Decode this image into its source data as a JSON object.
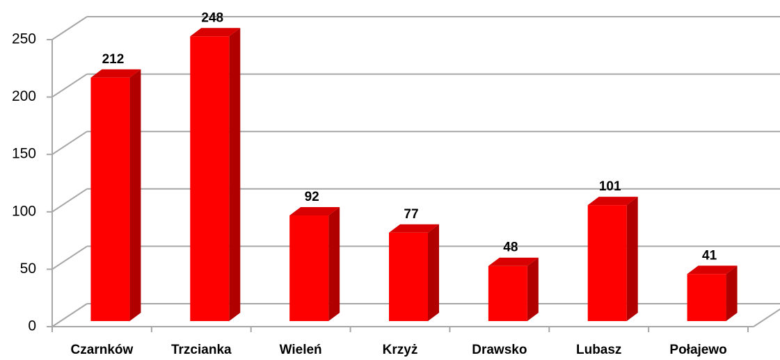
{
  "chart_data": {
    "type": "bar3d",
    "categories": [
      "Czarnków",
      "Trzcianka",
      "Wieleń",
      "Krzyż",
      "Drawsko",
      "Lubasz",
      "Połajewo"
    ],
    "values": [
      212,
      248,
      92,
      77,
      48,
      101,
      41
    ],
    "color": "#ff0000",
    "ylim": [
      0,
      250
    ],
    "yticks": [
      0,
      50,
      100,
      150,
      200,
      250
    ],
    "grid": true
  }
}
